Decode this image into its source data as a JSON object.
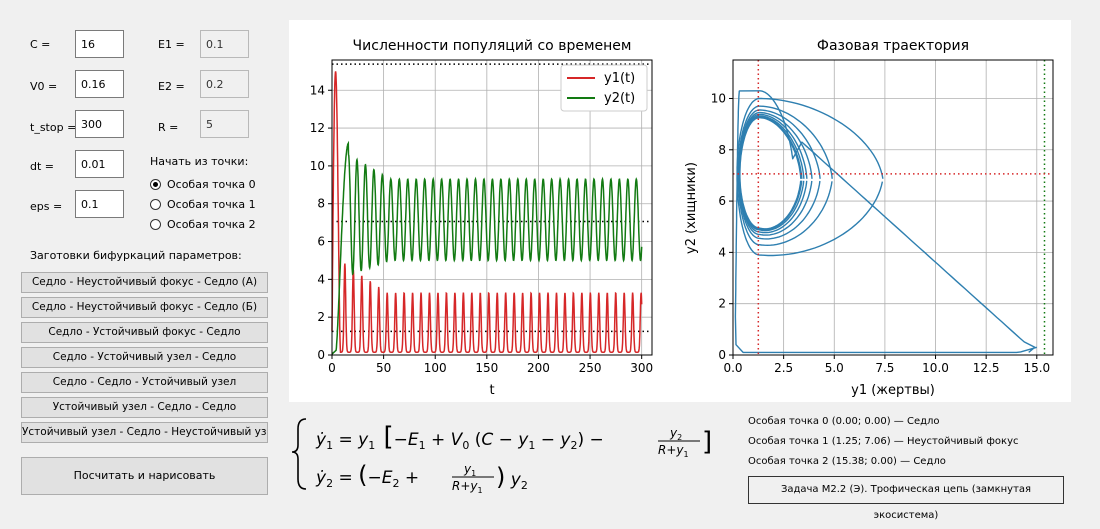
{
  "params": {
    "c": {
      "label": "C =",
      "value": "16"
    },
    "v0": {
      "label": "V0 =",
      "value": "0.16"
    },
    "t_stop": {
      "label": "t_stop =",
      "value": "300"
    },
    "dt": {
      "label": "dt =",
      "value": "0.01"
    },
    "eps": {
      "label": "eps =",
      "value": "0.1"
    },
    "e1": {
      "label": "E1 =",
      "value": "0.1"
    },
    "e2": {
      "label": "E2 =",
      "value": "0.2"
    },
    "r": {
      "label": "R =",
      "value": "5"
    }
  },
  "start_point": {
    "label": "Начать из точки:",
    "options": [
      "Особая точка 0",
      "Особая точка 1",
      "Особая точка 2"
    ],
    "selected_index": 0
  },
  "presets": {
    "label": "Заготовки бифуркаций параметров:",
    "buttons": [
      "Седло - Неустойчивый фокус - Седло (А)",
      "Седло - Неустойчивый фокус - Седло (Б)",
      "Седло - Устойчивый фокус - Седло",
      "Седло - Устойчивый узел - Седло",
      "Седло - Седло - Устойчивый узел",
      "Устойчивый узел - Седло - Седло",
      "Устойчивый узел - Седло - Неустойчивый узел"
    ]
  },
  "compute_button": "Посчитать и нарисовать",
  "singular_points": [
    "Особая точка 0 (0.00; 0.00) — Седло",
    "Особая точка 1 (1.25; 7.06) — Неустойчивый фокус",
    "Особая точка 2 (15.38; 0.00) — Седло"
  ],
  "task_label": "Задача М2.2 (Э). Трофическая цепь (замкнутая экосистема)",
  "colors": {
    "y1": "#d62728",
    "y2": "#127a12",
    "phase": "#2e7fb0",
    "bg": "#f0f0f0"
  },
  "chart_data": [
    {
      "type": "line",
      "title": "Численности популяций со временем",
      "xlabel": "t",
      "ylabel": "",
      "xlim": [
        0,
        310
      ],
      "ylim": [
        0,
        15.6
      ],
      "xticks": [
        0,
        50,
        100,
        150,
        200,
        250,
        300
      ],
      "yticks": [
        0,
        2,
        4,
        6,
        8,
        10,
        12,
        14
      ],
      "grid": true,
      "legend": "top-right",
      "period": 8.2,
      "series": [
        {
          "name": "y1(t)",
          "color": "#d62728",
          "peak_y": 15.0,
          "peak_t": 3.5,
          "steady_min": 0.15,
          "steady_max": 3.3
        },
        {
          "name": "y2(t)",
          "color": "#127a12",
          "peak_y": 11.2,
          "peak_t": 16,
          "steady_min": 5.0,
          "steady_max": 9.3
        }
      ],
      "hlines": [
        {
          "y": 15.38,
          "color": "#000000",
          "style": "dotted"
        },
        {
          "y": 7.06,
          "color": "#000000",
          "style": "dotted"
        },
        {
          "y": 1.25,
          "color": "#000000",
          "style": "dotted"
        }
      ]
    },
    {
      "type": "line",
      "title": "Фазовая траектория",
      "xlabel": "y1 (жертвы)",
      "ylabel": "y2 (хищники)",
      "xlim": [
        0,
        15.8
      ],
      "ylim": [
        0,
        11.5
      ],
      "xticks": [
        0.0,
        2.5,
        5.0,
        7.5,
        10.0,
        12.5,
        15.0
      ],
      "yticks": [
        0,
        2,
        4,
        6,
        8,
        10
      ],
      "grid": true,
      "series": [
        {
          "name": "",
          "color": "#2e7fb0"
        }
      ],
      "vlines": [
        {
          "x": 1.25,
          "color": "#d62728",
          "style": "dotted"
        },
        {
          "x": 15.38,
          "color": "#127a12",
          "style": "dotted"
        }
      ],
      "hlines": [
        {
          "y": 7.06,
          "color": "#d62728",
          "style": "dotted"
        }
      ],
      "trajectory_start": [
        15.0,
        0.3
      ],
      "cycle": {
        "center": [
          1.3,
          7.0
        ],
        "rx_min": 0.25,
        "rx_max": 1.7,
        "ry_min": 2.3,
        "ry_max": 2.9
      }
    }
  ]
}
